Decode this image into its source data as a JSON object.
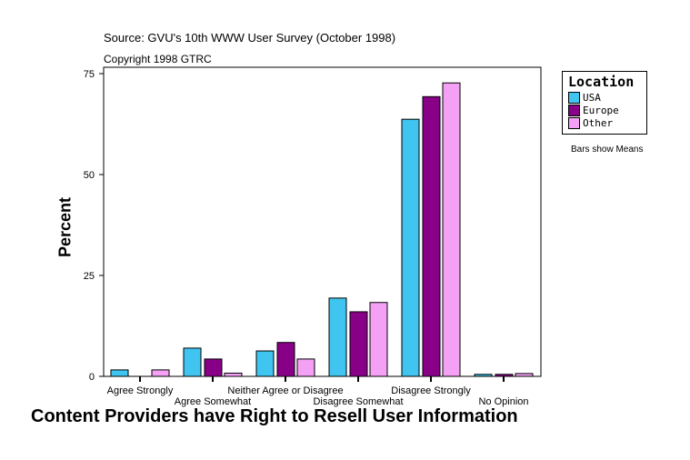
{
  "chart_data": {
    "type": "bar",
    "source": "Source: GVU's 10th WWW User Survey (October 1998)",
    "copyright": "Copyright 1998 GTRC",
    "title": "Content Providers have Right to Resell User Information",
    "xlabel": "Content Providers have Right to Resell User Information",
    "ylabel": "Percent",
    "ylim": [
      0,
      75
    ],
    "yticks": [
      0,
      25,
      50,
      75
    ],
    "grid": false,
    "categories": [
      "Agree Strongly",
      "Agree Somewhat",
      "Neither Agree or Disagree",
      "Disagree Somewhat",
      "Disagree Strongly",
      "No Opinion"
    ],
    "series": [
      {
        "name": "USA",
        "color": "#40c4f0",
        "values": [
          1.6,
          7.0,
          6.3,
          19.4,
          63.7,
          0.5
        ]
      },
      {
        "name": "Europe",
        "color": "#880088",
        "values": [
          0,
          4.3,
          8.4,
          16.0,
          69.3,
          0.5
        ]
      },
      {
        "name": "Other",
        "color": "#f4a0f4",
        "values": [
          1.6,
          0.8,
          4.3,
          18.3,
          72.7,
          0.7
        ]
      }
    ],
    "legend": {
      "title": "Location",
      "placement": "top-right"
    },
    "note": "Bars show Means"
  }
}
